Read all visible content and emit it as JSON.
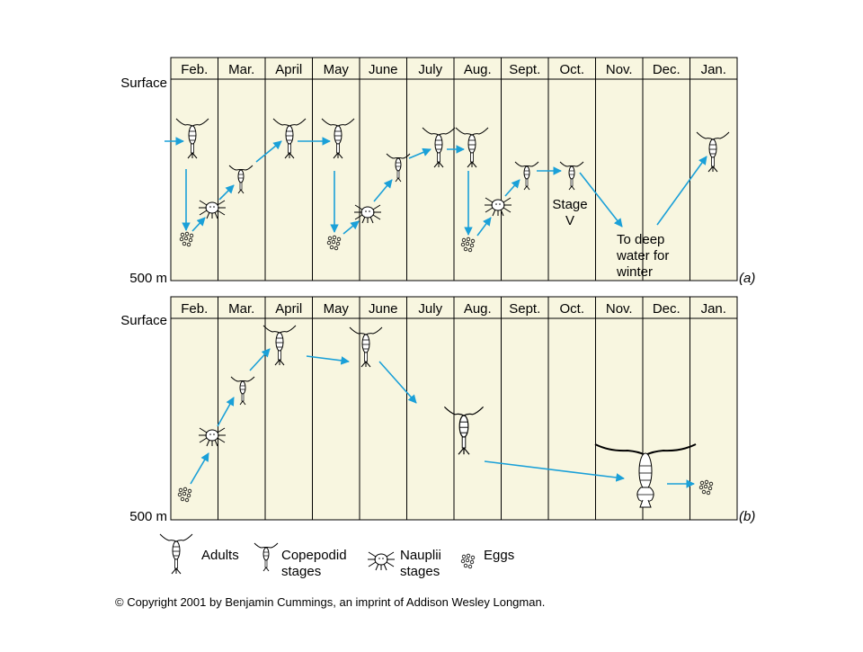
{
  "months": [
    "Feb.",
    "Mar.",
    "April",
    "May",
    "June",
    "July",
    "Aug.",
    "Sept.",
    "Oct.",
    "Nov.",
    "Dec.",
    "Jan."
  ],
  "surface_label": "Surface",
  "depth_label": "500 m",
  "panel_a": {
    "tag": "(a)",
    "stage_label_line1": "Stage",
    "stage_label_line2": "V",
    "winter_line1": "To deep",
    "winter_line2": "water for",
    "winter_line3": "winter"
  },
  "panel_b": {
    "tag": "(b)"
  },
  "legend": {
    "adults": "Adults",
    "copepodid_line1": "Copepodid",
    "copepodid_line2": "stages",
    "nauplii_line1": "Nauplii",
    "nauplii_line2": "stages",
    "eggs": "Eggs"
  },
  "footer": "© Copyright 2001 by Benjamin Cummings, an imprint of Addison Wesley Longman.",
  "colors": {
    "panel_fill": "#f8f6e0",
    "arrow": "#1aa0d8",
    "line": "#000000"
  }
}
